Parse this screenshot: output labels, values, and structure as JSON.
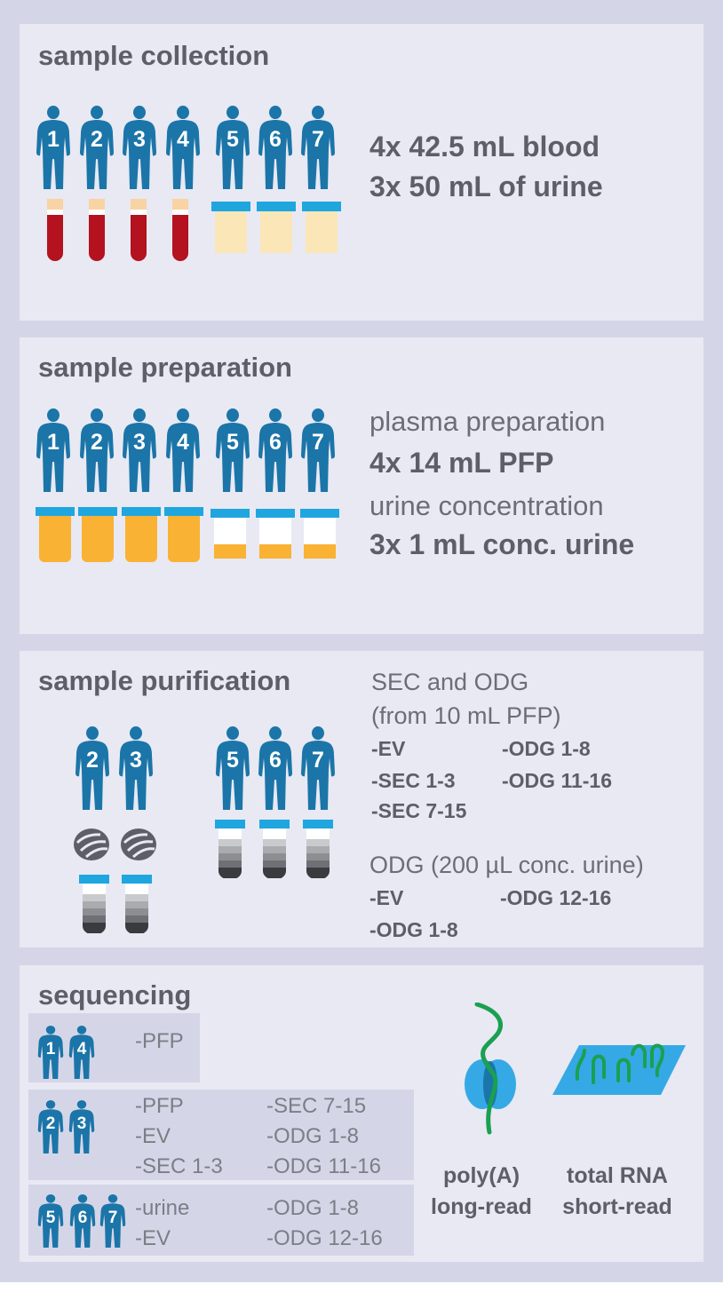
{
  "collection": {
    "title": "sample collection",
    "line1": "4x 42.5 mL blood",
    "line2": "3x 50 mL of urine",
    "persons": [
      "1",
      "2",
      "3",
      "4",
      "5",
      "6",
      "7"
    ]
  },
  "preparation": {
    "title": "sample preparation",
    "plasma_label": "plasma preparation",
    "plasma_value": "4x 14 mL PFP",
    "urine_label": "urine concentration",
    "urine_value": "3x 1 mL conc. urine",
    "persons": [
      "1",
      "2",
      "3",
      "4",
      "5",
      "6",
      "7"
    ]
  },
  "purification": {
    "title": "sample purification",
    "sec_title1": "SEC and ODG",
    "sec_title2": "(from 10 mL PFP)",
    "sec_col1": [
      "-EV",
      "-SEC 1-3",
      "-SEC 7-15"
    ],
    "sec_col2": [
      "-ODG 1-8",
      "-ODG 11-16"
    ],
    "odg_title": "ODG (200 µL conc. urine)",
    "odg_col1": [
      "-EV",
      "-ODG 1-8"
    ],
    "odg_col2": [
      "-ODG 12-16"
    ],
    "persons": [
      "2",
      "3",
      "5",
      "6",
      "7"
    ]
  },
  "sequencing": {
    "title": "sequencing",
    "group1": {
      "persons": [
        "1",
        "4"
      ],
      "col1": [
        "-PFP"
      ]
    },
    "group2": {
      "persons": [
        "2",
        "3"
      ],
      "col1": [
        "-PFP",
        "-EV",
        "-SEC 1-3"
      ],
      "col2": [
        "-SEC 7-15",
        "-ODG 1-8",
        "-ODG 11-16"
      ]
    },
    "group3": {
      "persons": [
        "5",
        "6",
        "7"
      ],
      "col1": [
        "-urine",
        "-EV"
      ],
      "col2": [
        "-ODG 1-8",
        "-ODG 12-16"
      ]
    },
    "longread_line1": "poly(A)",
    "longread_line2": "long-read",
    "shortread_line1": "total RNA",
    "shortread_line2": "short-read"
  },
  "colors": {
    "person": "#1b75a8",
    "blood": "#b3121e",
    "cap": "#f8d3a3",
    "urine_light": "#fbe6b8",
    "urine_dark": "#f9b233",
    "lid": "#1fa6df",
    "rna": "#1aa050",
    "slide": "#35a9e5"
  }
}
